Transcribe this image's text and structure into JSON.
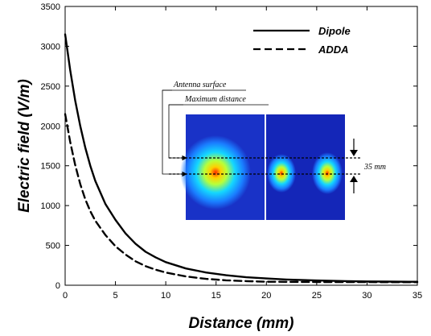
{
  "chart_data": {
    "type": "line",
    "title": "",
    "xlabel": "Distance (mm)",
    "ylabel": "Electric field (V/m)",
    "xlim": [
      0,
      35
    ],
    "ylim": [
      0,
      3500
    ],
    "xticks": [
      0,
      5,
      10,
      15,
      20,
      25,
      30,
      35
    ],
    "yticks": [
      0,
      500,
      1000,
      1500,
      2000,
      2500,
      3000,
      3500
    ],
    "grid": false,
    "legend_position": "top-right",
    "series": [
      {
        "name": "Dipole",
        "style": "solid",
        "color": "#000000",
        "x": [
          0,
          0.5,
          1,
          1.5,
          2,
          2.5,
          3,
          4,
          5,
          6,
          7,
          8,
          9,
          10,
          12,
          14,
          16,
          18,
          20,
          22,
          25,
          28,
          30,
          32,
          35
        ],
        "y": [
          3150,
          2700,
          2320,
          2000,
          1730,
          1500,
          1310,
          1020,
          820,
          650,
          520,
          420,
          350,
          290,
          210,
          160,
          125,
          100,
          85,
          72,
          60,
          52,
          48,
          46,
          44
        ]
      },
      {
        "name": "ADDA",
        "style": "dashed",
        "color": "#000000",
        "x": [
          0,
          0.5,
          1,
          1.5,
          2,
          2.5,
          3,
          4,
          5,
          6,
          7,
          8,
          9,
          10,
          12,
          14,
          16,
          18,
          20,
          22,
          25,
          28,
          30,
          32,
          35
        ],
        "y": [
          2150,
          1800,
          1510,
          1270,
          1080,
          930,
          810,
          630,
          490,
          385,
          300,
          240,
          195,
          160,
          110,
          80,
          62,
          52,
          45,
          42,
          40,
          39,
          39,
          38,
          38
        ]
      }
    ],
    "annotations": {
      "antenna_surface": "Antenna surface",
      "maximum_distance": "Maximum distance",
      "spacing": "35 mm"
    }
  }
}
